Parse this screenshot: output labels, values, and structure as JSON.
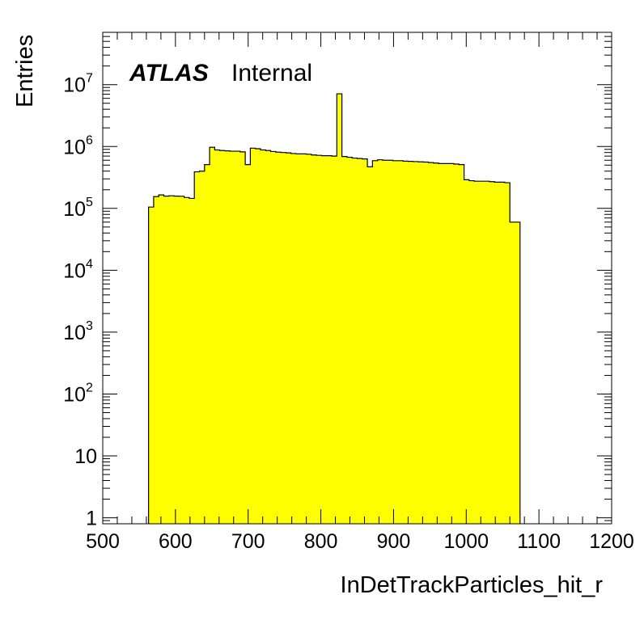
{
  "chart_data": {
    "type": "bar",
    "xlabel": "InDetTrackParticles_hit_r",
    "ylabel": "Entries",
    "xlim": [
      500,
      1200
    ],
    "ylim": [
      0.8,
      70000000
    ],
    "yscale": "log",
    "grid": false,
    "fill_color": "#ffff00",
    "line_color": "#000000",
    "x_ticks": [
      {
        "value": 500,
        "label": "500"
      },
      {
        "value": 600,
        "label": "600"
      },
      {
        "value": 700,
        "label": "700"
      },
      {
        "value": 800,
        "label": "800"
      },
      {
        "value": 900,
        "label": "900"
      },
      {
        "value": 1000,
        "label": "1000"
      },
      {
        "value": 1100,
        "label": "1100"
      },
      {
        "value": 1200,
        "label": "1200"
      }
    ],
    "y_ticks": [
      {
        "value": 1,
        "base": "1",
        "exp": ""
      },
      {
        "value": 10,
        "base": "10",
        "exp": ""
      },
      {
        "value": 100,
        "base": "10",
        "exp": "2"
      },
      {
        "value": 1000,
        "base": "10",
        "exp": "3"
      },
      {
        "value": 10000,
        "base": "10",
        "exp": "4"
      },
      {
        "value": 100000,
        "base": "10",
        "exp": "5"
      },
      {
        "value": 1000000,
        "base": "10",
        "exp": "6"
      },
      {
        "value": 10000000,
        "base": "10",
        "exp": "7"
      }
    ],
    "bin_edges": [
      563,
      570,
      577,
      584,
      591,
      598,
      605,
      612,
      619,
      626,
      633,
      640,
      647,
      654,
      661,
      668,
      675,
      682,
      689,
      696,
      703,
      710,
      717,
      724,
      731,
      738,
      745,
      752,
      759,
      766,
      773,
      780,
      787,
      794,
      801,
      808,
      815,
      822,
      829,
      836,
      843,
      850,
      857,
      864,
      871,
      878,
      885,
      892,
      899,
      906,
      913,
      920,
      927,
      934,
      941,
      948,
      955,
      962,
      969,
      976,
      983,
      990,
      997,
      1004,
      1011,
      1018,
      1025,
      1032,
      1039,
      1046,
      1053,
      1060,
      1067,
      1074
    ],
    "values": [
      105000,
      155000,
      165000,
      158000,
      160000,
      158000,
      157000,
      150000,
      145000,
      390000,
      400000,
      510000,
      970000,
      880000,
      860000,
      850000,
      840000,
      840000,
      820000,
      510000,
      940000,
      920000,
      880000,
      860000,
      830000,
      810000,
      800000,
      790000,
      770000,
      760000,
      760000,
      750000,
      730000,
      720000,
      710000,
      710000,
      700000,
      7100000,
      690000,
      670000,
      650000,
      640000,
      630000,
      470000,
      590000,
      610000,
      600000,
      600000,
      590000,
      590000,
      580000,
      575000,
      570000,
      565000,
      560000,
      550000,
      540000,
      530000,
      530000,
      530000,
      520000,
      510000,
      290000,
      280000,
      275000,
      275000,
      275000,
      270000,
      265000,
      265000,
      260000,
      60000,
      60000
    ]
  },
  "annotation": {
    "experiment": "ATLAS",
    "status": "Internal"
  }
}
